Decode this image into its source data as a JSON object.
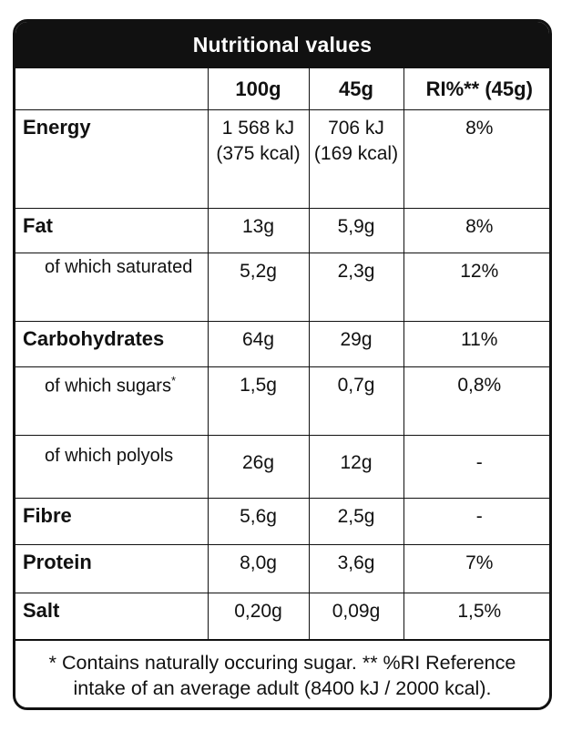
{
  "title": "Nutritional values",
  "columns": [
    "",
    "100g",
    "45g",
    "RI%** (45g)"
  ],
  "rows": [
    {
      "label": "Energy",
      "bold": true,
      "v100": "1 568 kJ (375 kcal)",
      "v45": "706 kJ (169 kcal)",
      "ri": "8%"
    },
    {
      "label": "Fat",
      "bold": true,
      "v100": "13g",
      "v45": "5,9g",
      "ri": "8%"
    },
    {
      "label": "of which saturated",
      "bold": false,
      "v100": "5,2g",
      "v45": "2,3g",
      "ri": "12%"
    },
    {
      "label": "Carbohydrates",
      "bold": true,
      "v100": "64g",
      "v45": "29g",
      "ri": "11%"
    },
    {
      "label": "of which sugars",
      "label_mark": "*",
      "bold": false,
      "v100": "1,5g",
      "v45": "0,7g",
      "ri": "0,8%"
    },
    {
      "label": "of which polyols",
      "bold": false,
      "v100": "26g",
      "v45": "12g",
      "ri": "-"
    },
    {
      "label": "Fibre",
      "bold": true,
      "v100": "5,6g",
      "v45": "2,5g",
      "ri": "-"
    },
    {
      "label": "Protein",
      "bold": true,
      "v100": "8,0g",
      "v45": "3,6g",
      "ri": "7%"
    },
    {
      "label": "Salt",
      "bold": true,
      "v100": "0,20g",
      "v45": "0,09g",
      "ri": "1,5%"
    }
  ],
  "footnote": "* Contains naturally occuring sugar. ** %RI Reference intake of an average adult (8400 kJ / 2000 kcal)."
}
